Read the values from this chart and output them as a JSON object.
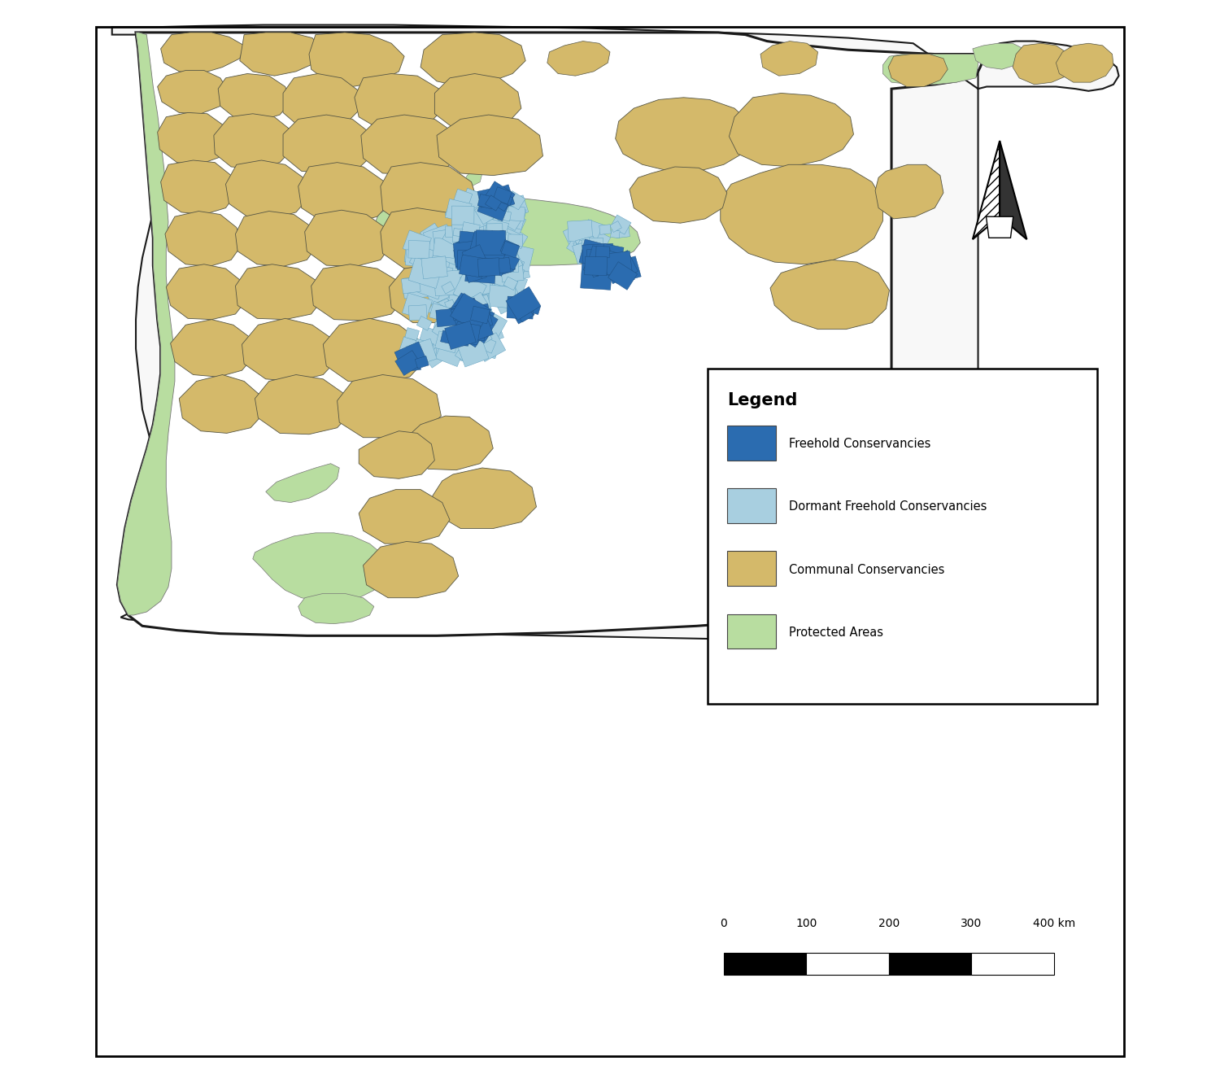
{
  "background_color": "#ffffff",
  "border_color": "#000000",
  "freehold_color": "#2b6cb0",
  "dormant_freehold_color": "#a8cfe0",
  "communal_color": "#d4b96a",
  "protected_color": "#b8dda0",
  "legend_title": "Legend",
  "legend_items": [
    {
      "label": "Freehold Conservancies",
      "color": "#2b6cb0"
    },
    {
      "label": "Dormant Freehold Conservancies",
      "color": "#a8cfe0"
    },
    {
      "label": "Communal Conservancies",
      "color": "#d4b96a"
    },
    {
      "label": "Protected Areas",
      "color": "#b8dda0"
    }
  ],
  "figsize": [
    15.0,
    13.31
  ],
  "dpi": 100
}
